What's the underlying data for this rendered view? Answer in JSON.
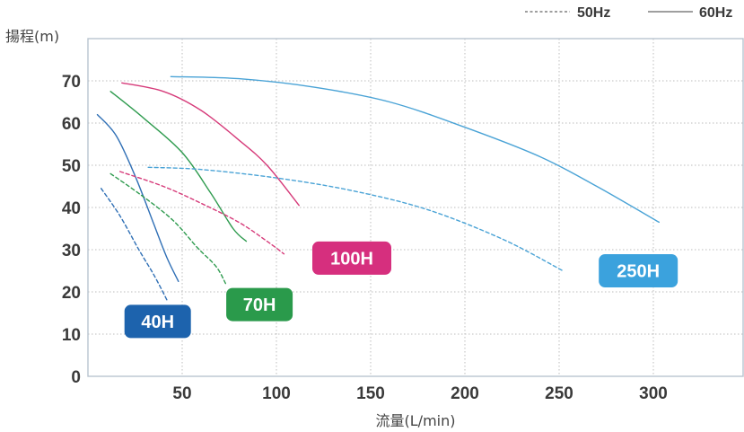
{
  "chart_data": {
    "type": "line",
    "xlabel": "流量(L/min)",
    "ylabel": "揚程(m)",
    "xlim": [
      0,
      350
    ],
    "ylim": [
      0,
      80
    ],
    "x_ticks": [
      50,
      100,
      150,
      200,
      250,
      300
    ],
    "y_ticks": [
      0,
      10,
      20,
      30,
      40,
      50,
      60,
      70
    ],
    "grid": true,
    "legend": {
      "placement": "top-right",
      "entries": [
        {
          "label": "50Hz",
          "style": "dashed"
        },
        {
          "label": "60Hz",
          "style": "solid"
        }
      ]
    },
    "series": [
      {
        "model": "40H",
        "freq": "60Hz",
        "color": "#2f6fb5",
        "points": [
          [
            5,
            62
          ],
          [
            15,
            57
          ],
          [
            25,
            47.5
          ],
          [
            35,
            36
          ],
          [
            42,
            28
          ],
          [
            48,
            22.5
          ]
        ]
      },
      {
        "model": "40H",
        "freq": "50Hz",
        "color": "#2f6fb5",
        "points": [
          [
            7,
            44.5
          ],
          [
            17,
            38
          ],
          [
            27,
            30
          ],
          [
            35,
            24
          ],
          [
            42,
            18
          ]
        ]
      },
      {
        "model": "70H",
        "freq": "60Hz",
        "color": "#2f9b4f",
        "points": [
          [
            12,
            67.5
          ],
          [
            30,
            61
          ],
          [
            50,
            53
          ],
          [
            65,
            43.5
          ],
          [
            77,
            35
          ],
          [
            84,
            32
          ]
        ]
      },
      {
        "model": "70H",
        "freq": "50Hz",
        "color": "#2f9b4f",
        "points": [
          [
            12,
            48
          ],
          [
            28,
            43
          ],
          [
            45,
            37
          ],
          [
            58,
            30.5
          ],
          [
            68,
            26
          ],
          [
            73,
            22
          ]
        ]
      },
      {
        "model": "100H",
        "freq": "60Hz",
        "color": "#d63b7a",
        "points": [
          [
            18,
            69.5
          ],
          [
            40,
            67.5
          ],
          [
            60,
            63
          ],
          [
            80,
            56
          ],
          [
            95,
            50
          ],
          [
            112,
            40.5
          ]
        ]
      },
      {
        "model": "100H",
        "freq": "50Hz",
        "color": "#d63b7a",
        "points": [
          [
            17,
            48.5
          ],
          [
            40,
            45
          ],
          [
            60,
            41
          ],
          [
            80,
            36.5
          ],
          [
            95,
            32
          ],
          [
            104,
            29
          ]
        ]
      },
      {
        "model": "250H",
        "freq": "60Hz",
        "color": "#4aa3d6",
        "points": [
          [
            44,
            71
          ],
          [
            80,
            70.5
          ],
          [
            120,
            68.5
          ],
          [
            160,
            65
          ],
          [
            200,
            59
          ],
          [
            240,
            52
          ],
          [
            270,
            45
          ],
          [
            303,
            36.5
          ]
        ]
      },
      {
        "model": "250H",
        "freq": "50Hz",
        "color": "#4aa3d6",
        "points": [
          [
            32,
            49.5
          ],
          [
            60,
            49
          ],
          [
            100,
            47
          ],
          [
            140,
            44
          ],
          [
            180,
            39.5
          ],
          [
            220,
            32.5
          ],
          [
            252,
            25
          ]
        ]
      }
    ],
    "badges": [
      {
        "label": "40H",
        "color": "#1d63ad",
        "at": [
          37,
          13
        ]
      },
      {
        "label": "70H",
        "color": "#2a9a4b",
        "at": [
          91,
          17
        ]
      },
      {
        "label": "100H",
        "color": "#d62f7e",
        "at": [
          140,
          28
        ]
      },
      {
        "label": "250H",
        "color": "#3ba2dd",
        "at": [
          292,
          25
        ]
      }
    ]
  }
}
